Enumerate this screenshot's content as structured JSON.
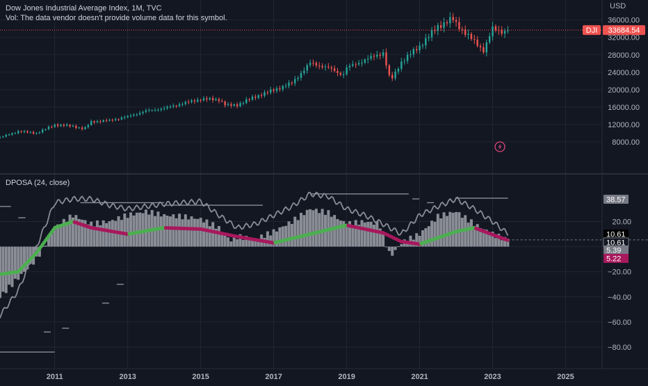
{
  "colors": {
    "background": "#131722",
    "grid": "#232733",
    "axis_text": "#b2b5be",
    "up": "#26a69a",
    "down": "#ef5350",
    "price_line": "#ef5350",
    "histogram": "#8a8d96",
    "envelope": "#8a8d96",
    "signal_up": "#4caf50",
    "signal_down": "#a8185d",
    "badge_gray": "#787b86"
  },
  "main_chart": {
    "title": "Dow Jones Industrial Average Index, 1M, TVC",
    "volume_note": "Vol: The data vendor doesn't provide volume data for this symbol.",
    "currency": "USD",
    "symbol_badge": "DJI",
    "last_price": "33684.54",
    "last_price_value": 33684.54,
    "y_ticks": [
      "36000.00",
      "32000.00",
      "28000.00",
      "24000.00",
      "20000.00",
      "16000.00",
      "12000.00",
      "8000.00"
    ],
    "y_tick_values": [
      36000,
      32000,
      28000,
      24000,
      20000,
      16000,
      12000,
      8000
    ],
    "event_icon": "lightning-icon"
  },
  "oscillator": {
    "title": "DPOSA (24, close)",
    "y_ticks": [
      "20.00",
      "−20.00",
      "−40.00",
      "−60.00",
      "−80.00"
    ],
    "y_tick_values": [
      20,
      -20,
      -40,
      -60,
      -80
    ],
    "badges": [
      {
        "label": "38.57",
        "value": 38.57,
        "style": "gray"
      },
      {
        "label": "10.61",
        "value": 10.61,
        "style": "black"
      },
      {
        "label": "10.61",
        "value": 10.61,
        "style": "outline"
      },
      {
        "label": "5.39",
        "value": 5.39,
        "style": "gray"
      },
      {
        "label": "5.22",
        "value": 5.22,
        "style": "magenta"
      }
    ]
  },
  "x_axis": {
    "labels": [
      "2011",
      "2013",
      "2015",
      "2017",
      "2019",
      "2021",
      "2023",
      "2025"
    ],
    "years": [
      2011,
      2013,
      2015,
      2017,
      2019,
      2021,
      2023,
      2025
    ]
  },
  "chart_data": [
    {
      "type": "candlestick",
      "title": "Dow Jones Industrial Average Index, 1M, TVC",
      "ylabel": "USD",
      "approx_close_by_year": {
        "2009.5": 9000,
        "2010.0": 10400,
        "2010.5": 10000,
        "2011.0": 11900,
        "2011.5": 11600,
        "2011.8": 10900,
        "2012.0": 12600,
        "2012.5": 12900,
        "2013.0": 13800,
        "2013.5": 15100,
        "2014.0": 15700,
        "2014.5": 16800,
        "2015.0": 17800,
        "2015.5": 17700,
        "2015.7": 16300,
        "2016.0": 16500,
        "2016.5": 18400,
        "2017.0": 19900,
        "2017.5": 21500,
        "2018.0": 26100,
        "2018.5": 25000,
        "2018.9": 23300,
        "2019.0": 25000,
        "2019.5": 26800,
        "2020.0": 28500,
        "2020.2": 21900,
        "2020.5": 26400,
        "2021.0": 30000,
        "2021.5": 34500,
        "2021.9": 36300,
        "2022.0": 35100,
        "2022.5": 31000,
        "2022.75": 29000,
        "2023.0": 34000,
        "2023.25": 33300,
        "2023.4": 33684.54
      },
      "ylim": [
        6000,
        38500
      ]
    },
    {
      "type": "bar",
      "title": "DPOSA (24, close)",
      "histogram_by_year": {
        "2009.5": -40,
        "2010.0": -25,
        "2010.5": -10,
        "2011.0": 15,
        "2011.5": 25,
        "2012.0": 18,
        "2012.5": 20,
        "2013.0": 25,
        "2013.5": 28,
        "2014.0": 25,
        "2014.5": 24,
        "2015.0": 22,
        "2015.5": 15,
        "2015.8": 5,
        "2016.0": 8,
        "2016.5": 6,
        "2017.0": 12,
        "2017.5": 20,
        "2018.0": 30,
        "2018.5": 27,
        "2019.0": 18,
        "2019.5": 20,
        "2019.9": 18,
        "2020.2": -8,
        "2020.5": 3,
        "2021.0": 10,
        "2021.5": 24,
        "2022.0": 28,
        "2022.5": 18,
        "2023.0": 10,
        "2023.4": 5.39
      },
      "signal_by_year": {
        "2009.5": -22,
        "2010.0": -20,
        "2010.5": -5,
        "2011.0": 15,
        "2011.5": 20,
        "2012.0": 15,
        "2013.0": 10,
        "2014.0": 15,
        "2015.0": 14,
        "2016.0": 8,
        "2017.0": 3,
        "2018.0": 10,
        "2019.0": 17,
        "2020.0": 11,
        "2020.5": 4,
        "2021.0": 2,
        "2022.0": 12,
        "2022.5": 15,
        "2023.4": 5.22
      },
      "envelope_by_year": {
        "2009.5": -55,
        "2010.0": -35,
        "2010.5": 0,
        "2011.0": 35,
        "2011.5": 38,
        "2012.0": 38,
        "2012.5": 33,
        "2013.0": 30,
        "2014.0": 34,
        "2015.0": 36,
        "2015.5": 25,
        "2016.0": 15,
        "2016.5": 18,
        "2017.0": 25,
        "2017.5": 32,
        "2018.0": 42,
        "2018.5": 40,
        "2019.0": 30,
        "2019.5": 25,
        "2020.0": 18,
        "2020.5": 10,
        "2021.0": 25,
        "2021.5": 32,
        "2022.0": 38,
        "2022.5": 30,
        "2023.0": 20,
        "2023.4": 10.61
      },
      "ylim": [
        -85,
        45
      ]
    }
  ]
}
